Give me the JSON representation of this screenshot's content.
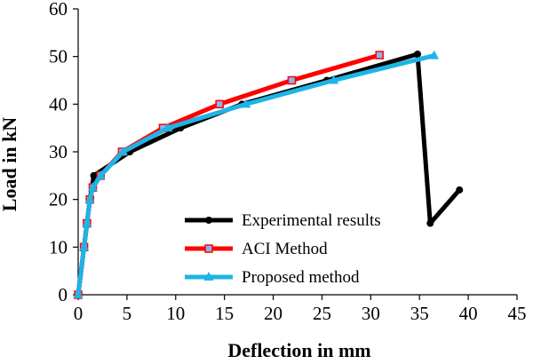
{
  "chart_data": {
    "type": "line",
    "xlabel": "Deflection in mm",
    "ylabel": "Load in kN",
    "xlim": [
      0,
      45
    ],
    "ylim": [
      0,
      60
    ],
    "xticks": [
      0,
      5,
      10,
      15,
      20,
      25,
      30,
      35,
      40,
      45
    ],
    "yticks": [
      0,
      10,
      20,
      30,
      40,
      50,
      60
    ],
    "grid": false,
    "legend_position": "bottom-right",
    "series": [
      {
        "name": "Experimental results",
        "color": "#000000",
        "marker": "circle",
        "points": [
          [
            0,
            0
          ],
          [
            0.6,
            10
          ],
          [
            0.9,
            15
          ],
          [
            1.2,
            20
          ],
          [
            1.6,
            25
          ],
          [
            5.3,
            30
          ],
          [
            10.5,
            35
          ],
          [
            16.8,
            40
          ],
          [
            25.5,
            45
          ],
          [
            34.8,
            50.5
          ],
          [
            36.1,
            15
          ],
          [
            39.1,
            22
          ]
        ]
      },
      {
        "name": "ACI  Method",
        "color": "#ff0000",
        "marker": "square",
        "points": [
          [
            0,
            0
          ],
          [
            0.6,
            10
          ],
          [
            0.9,
            15
          ],
          [
            1.2,
            20
          ],
          [
            1.5,
            22.5
          ],
          [
            2.3,
            25
          ],
          [
            4.5,
            30
          ],
          [
            8.7,
            35
          ],
          [
            14.5,
            40
          ],
          [
            21.9,
            45
          ],
          [
            30.9,
            50.3
          ]
        ]
      },
      {
        "name": "Proposed method",
        "color": "#1eb4e6",
        "marker": "triangle",
        "points": [
          [
            0,
            0
          ],
          [
            0.6,
            10
          ],
          [
            0.9,
            15
          ],
          [
            1.2,
            20
          ],
          [
            1.5,
            22.5
          ],
          [
            2.3,
            25
          ],
          [
            4.6,
            30
          ],
          [
            9.2,
            35
          ],
          [
            17.2,
            40
          ],
          [
            26.2,
            45
          ],
          [
            36.5,
            50.2
          ]
        ]
      }
    ]
  }
}
